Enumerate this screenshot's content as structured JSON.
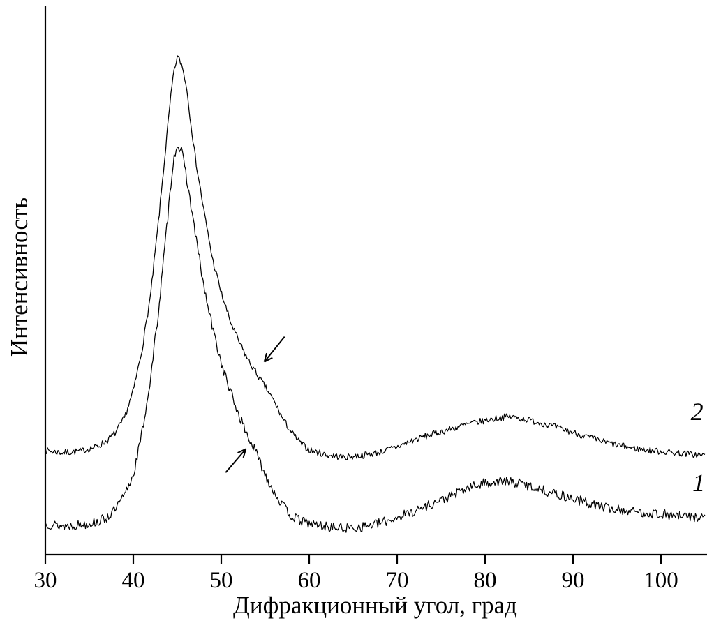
{
  "figure": {
    "background": "#ffffff",
    "axis_color": "#000000",
    "curve_color": "#000000"
  },
  "chart_data": {
    "type": "line",
    "title": "",
    "xlabel": "Дифракционный угол, град",
    "ylabel": "Интенсивность",
    "xlim": [
      30,
      105
    ],
    "ylim": [
      0,
      100
    ],
    "x_ticks": [
      30,
      40,
      50,
      60,
      70,
      80,
      90,
      100
    ],
    "y_ticks": [],
    "grid": false,
    "legend_position": "none",
    "description": "Two noisy X-ray diffraction curves (intensity vs diffraction angle), broad main peak near 45 deg and broad secondary hump near 82 deg; curve 2 offset above curve 1; small arrows mark shoulders near 53-55 deg.",
    "series": [
      {
        "name": "2",
        "label": "2",
        "label_pos": [
          104.1,
          24.6
        ],
        "noise": 0.6,
        "seed": 7,
        "points": [
          [
            30,
            19.0
          ],
          [
            32,
            18.6
          ],
          [
            34,
            18.9
          ],
          [
            36,
            19.8
          ],
          [
            37,
            20.8
          ],
          [
            38,
            22.3
          ],
          [
            39,
            25.0
          ],
          [
            40,
            29.9
          ],
          [
            41,
            37.5
          ],
          [
            42,
            47.8
          ],
          [
            43,
            63.0
          ],
          [
            44,
            79.5
          ],
          [
            44.5,
            87.0
          ],
          [
            45,
            91.0
          ],
          [
            45.5,
            89.5
          ],
          [
            46,
            86.0
          ],
          [
            47,
            73.0
          ],
          [
            48,
            63.0
          ],
          [
            49,
            54.0
          ],
          [
            50,
            47.8
          ],
          [
            51,
            42.7
          ],
          [
            52,
            38.9
          ],
          [
            53,
            35.7
          ],
          [
            54,
            33.1
          ],
          [
            55,
            30.6
          ],
          [
            56,
            28.0
          ],
          [
            57,
            24.8
          ],
          [
            58,
            22.3
          ],
          [
            59,
            20.4
          ],
          [
            60,
            19.1
          ],
          [
            62,
            18.2
          ],
          [
            64,
            17.8
          ],
          [
            66,
            18.1
          ],
          [
            68,
            18.7
          ],
          [
            70,
            19.7
          ],
          [
            72,
            21.0
          ],
          [
            74,
            22.0
          ],
          [
            76,
            22.9
          ],
          [
            78,
            23.8
          ],
          [
            80,
            24.5
          ],
          [
            82,
            25.1
          ],
          [
            83,
            25.2
          ],
          [
            85,
            24.6
          ],
          [
            87,
            23.8
          ],
          [
            89,
            22.8
          ],
          [
            91,
            21.8
          ],
          [
            93,
            20.8
          ],
          [
            95,
            20.0
          ],
          [
            97,
            19.4
          ],
          [
            99,
            19.0
          ],
          [
            101,
            18.7
          ],
          [
            103,
            18.4
          ],
          [
            105,
            18.1
          ]
        ]
      },
      {
        "name": "1",
        "label": "1",
        "label_pos": [
          104.3,
          11.6
        ],
        "noise": 0.9,
        "seed": 13,
        "points": [
          [
            30,
            5.7
          ],
          [
            32,
            5.2
          ],
          [
            34,
            5.5
          ],
          [
            36,
            6.0
          ],
          [
            37,
            6.8
          ],
          [
            38,
            8.3
          ],
          [
            39,
            10.8
          ],
          [
            40,
            14.6
          ],
          [
            41,
            22.3
          ],
          [
            42,
            32.5
          ],
          [
            43,
            46.5
          ],
          [
            44,
            63.0
          ],
          [
            44.5,
            71.5
          ],
          [
            45,
            75.0
          ],
          [
            45.5,
            73.5
          ],
          [
            46,
            69.4
          ],
          [
            47,
            59.2
          ],
          [
            48,
            49.0
          ],
          [
            49,
            41.4
          ],
          [
            50,
            35.0
          ],
          [
            51,
            29.9
          ],
          [
            52,
            25.5
          ],
          [
            53,
            21.7
          ],
          [
            54,
            18.5
          ],
          [
            55,
            14.6
          ],
          [
            56,
            11.5
          ],
          [
            57,
            8.9
          ],
          [
            58,
            7.0
          ],
          [
            59,
            6.2
          ],
          [
            60,
            5.7
          ],
          [
            62,
            5.1
          ],
          [
            64,
            4.8
          ],
          [
            66,
            5.1
          ],
          [
            68,
            5.7
          ],
          [
            70,
            6.8
          ],
          [
            72,
            8.0
          ],
          [
            74,
            9.3
          ],
          [
            76,
            10.6
          ],
          [
            78,
            12.1
          ],
          [
            80,
            13.1
          ],
          [
            82,
            13.4
          ],
          [
            84,
            13.0
          ],
          [
            86,
            12.1
          ],
          [
            88,
            11.1
          ],
          [
            90,
            10.2
          ],
          [
            92,
            9.3
          ],
          [
            94,
            8.5
          ],
          [
            96,
            8.0
          ],
          [
            98,
            7.7
          ],
          [
            100,
            7.4
          ],
          [
            102,
            7.0
          ],
          [
            105,
            6.8
          ]
        ]
      }
    ],
    "annotations": [
      {
        "type": "arrow",
        "target_series": "2",
        "from": [
          57.2,
          39.8
        ],
        "to": [
          54.9,
          35.2
        ]
      },
      {
        "type": "arrow",
        "target_series": "1",
        "from": [
          50.5,
          15.0
        ],
        "to": [
          52.8,
          19.3
        ]
      }
    ]
  }
}
